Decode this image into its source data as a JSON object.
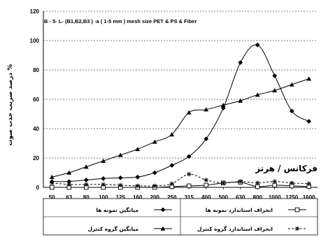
{
  "chart_data": {
    "type": "line",
    "title": "B - 5- L- (B1,B2,B3 ) -a ( 1-5 mm ) mesh size PET & PS & Fiber",
    "ylabel": "درصد ضریب جذب صوت %",
    "xlabel": "فرکانس / هرتز",
    "categories": [
      "50",
      "63",
      "80",
      "100",
      "125",
      "160",
      "200",
      "250",
      "315",
      "400",
      "500",
      "630",
      "800",
      "1000",
      "1250",
      "1600"
    ],
    "ylim": [
      0,
      120
    ],
    "yticks": [
      "0",
      "20",
      "40",
      "60",
      "80",
      "100",
      "120"
    ],
    "grid": "horizontal-dashed",
    "legend_position": "bottom",
    "series": [
      {
        "name": "میانگین نمونه ها",
        "marker": "diamond",
        "line": "solid",
        "color": "#000000",
        "values": [
          4,
          4,
          5,
          6,
          6.5,
          7,
          10,
          15,
          21,
          33,
          54,
          85,
          97,
          76,
          52,
          45
        ]
      },
      {
        "name": "انحراف استاندارد نمونه ها",
        "marker": "square-open",
        "line": "solid",
        "color": "#000000",
        "values": [
          0,
          0,
          0,
          0,
          0,
          0,
          0,
          0.5,
          1,
          1.5,
          3,
          3.5,
          0.5,
          1.5,
          1,
          0.5
        ]
      },
      {
        "name": "میانگین گروه کنترل",
        "marker": "triangle",
        "line": "solid",
        "color": "#000000",
        "values": [
          7,
          10,
          14,
          18,
          22,
          26,
          31,
          36,
          51,
          53,
          56,
          59,
          63,
          66,
          70,
          74
        ]
      },
      {
        "name": "انحراف استاندارد گروه کنترل",
        "marker": "asterisk",
        "line": "dashed",
        "color": "#000000",
        "values": [
          3,
          2,
          2,
          2,
          1.5,
          1,
          1,
          2.5,
          9,
          5,
          3,
          4,
          3,
          4,
          3,
          2.5
        ]
      }
    ]
  }
}
